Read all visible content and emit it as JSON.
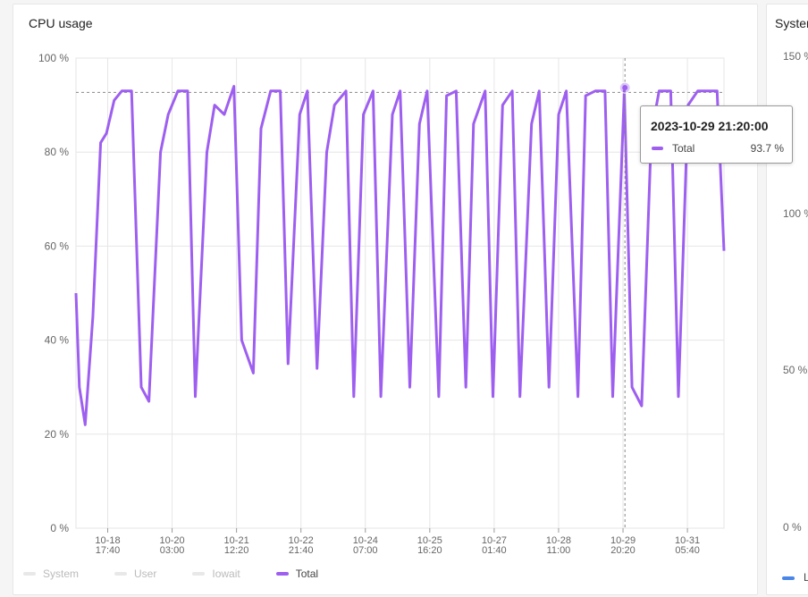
{
  "cpu_panel": {
    "title": "CPU usage"
  },
  "system_panel": {
    "title_visible": "Syster",
    "y_ticks": [
      "150 %",
      "100 %",
      "50 %",
      "0 %"
    ],
    "legend_visible": "L"
  },
  "legend": {
    "items": [
      {
        "label": "System",
        "active": false
      },
      {
        "label": "User",
        "active": false
      },
      {
        "label": "Iowait",
        "active": false
      },
      {
        "label": "Total",
        "active": true
      }
    ]
  },
  "tooltip": {
    "title": "2023-10-29 21:20:00",
    "series": "Total",
    "value": "93.7 %"
  },
  "colors": {
    "total": "#9e5ff0",
    "grid": "#e6e6e6",
    "system_legend": "#4a86e8"
  },
  "chart_data": {
    "type": "line",
    "title": "CPU usage",
    "ylim": [
      0,
      100
    ],
    "y_ticks": [
      0,
      20,
      40,
      60,
      80,
      100
    ],
    "y_tick_labels": [
      "0 %",
      "20 %",
      "40 %",
      "60 %",
      "80 %",
      "100 %"
    ],
    "x_tick_labels": [
      [
        "10-18",
        "17:40"
      ],
      [
        "10-20",
        "03:00"
      ],
      [
        "10-21",
        "12:20"
      ],
      [
        "10-22",
        "21:40"
      ],
      [
        "10-24",
        "07:00"
      ],
      [
        "10-25",
        "16:20"
      ],
      [
        "10-27",
        "01:40"
      ],
      [
        "10-28",
        "11:00"
      ],
      [
        "10-29",
        "20:20"
      ],
      [
        "10-31",
        "05:40"
      ]
    ],
    "x_ticks": [
      "2023-10-18 17:40",
      "2023-10-20 03:00",
      "2023-10-21 12:20",
      "2023-10-22 21:40",
      "2023-10-24 07:00",
      "2023-10-25 16:20",
      "2023-10-27 01:40",
      "2023-10-28 11:00",
      "2023-10-29 20:20",
      "2023-10-31 05:40"
    ],
    "xlim": [
      "2023-10-18 01:15",
      "2023-11-01 00:35"
    ],
    "grid": true,
    "legend_position": "bottom-left",
    "reference_line_y": 92.7,
    "hover_x": "2023-10-29 21:20",
    "hover_value": 93.7,
    "series": [
      {
        "name": "Total",
        "x": [
          "2023-10-18 01:15",
          "2023-10-18 03:00",
          "2023-10-18 06:00",
          "2023-10-18 10:00",
          "2023-10-18 14:00",
          "2023-10-18 17:00",
          "2023-10-18 21:00",
          "2023-10-19 01:00",
          "2023-10-19 06:00",
          "2023-10-19 11:00",
          "2023-10-19 15:00",
          "2023-10-19 21:00",
          "2023-10-20 01:00",
          "2023-10-20 06:00",
          "2023-10-20 11:00",
          "2023-10-20 15:00",
          "2023-10-20 21:00",
          "2023-10-21 01:00",
          "2023-10-21 06:00",
          "2023-10-21 11:00",
          "2023-10-21 15:00",
          "2023-10-21 21:00",
          "2023-10-22 01:00",
          "2023-10-22 06:00",
          "2023-10-22 11:00",
          "2023-10-22 15:00",
          "2023-10-22 21:00",
          "2023-10-23 01:00",
          "2023-10-23 06:00",
          "2023-10-23 11:00",
          "2023-10-23 15:00",
          "2023-10-23 21:00",
          "2023-10-24 01:00",
          "2023-10-24 06:00",
          "2023-10-24 11:00",
          "2023-10-24 15:00",
          "2023-10-24 21:00",
          "2023-10-25 01:00",
          "2023-10-25 06:00",
          "2023-10-25 11:00",
          "2023-10-25 15:00",
          "2023-10-25 21:00",
          "2023-10-26 01:00",
          "2023-10-26 06:00",
          "2023-10-26 11:00",
          "2023-10-26 15:00",
          "2023-10-26 21:00",
          "2023-10-27 01:00",
          "2023-10-27 06:00",
          "2023-10-27 11:00",
          "2023-10-27 15:00",
          "2023-10-27 21:00",
          "2023-10-28 01:00",
          "2023-10-28 06:00",
          "2023-10-28 11:00",
          "2023-10-28 15:00",
          "2023-10-28 21:00",
          "2023-10-29 01:00",
          "2023-10-29 06:00",
          "2023-10-29 11:00",
          "2023-10-29 15:00",
          "2023-10-29 21:00",
          "2023-10-30 01:00",
          "2023-10-30 06:00",
          "2023-10-30 11:00",
          "2023-10-30 15:00",
          "2023-10-30 21:00",
          "2023-10-31 01:00",
          "2023-10-31 06:00",
          "2023-10-31 11:00",
          "2023-10-31 15:00",
          "2023-10-31 21:00",
          "2023-11-01 00:35"
        ],
        "values": [
          50,
          30,
          22,
          45,
          82,
          84,
          91,
          93,
          93,
          30,
          27,
          80,
          88,
          93,
          93,
          28,
          80,
          90,
          88,
          94,
          40,
          33,
          85,
          93,
          93,
          35,
          88,
          93,
          34,
          80,
          90,
          93,
          28,
          88,
          93,
          28,
          88,
          93,
          30,
          86,
          93,
          28,
          92,
          93,
          30,
          86,
          93,
          28,
          90,
          93,
          28,
          86,
          93,
          30,
          88,
          93,
          28,
          92,
          93,
          93,
          28,
          93,
          30,
          26,
          84,
          93,
          93,
          28,
          90,
          93,
          93,
          93,
          59
        ]
      }
    ]
  }
}
